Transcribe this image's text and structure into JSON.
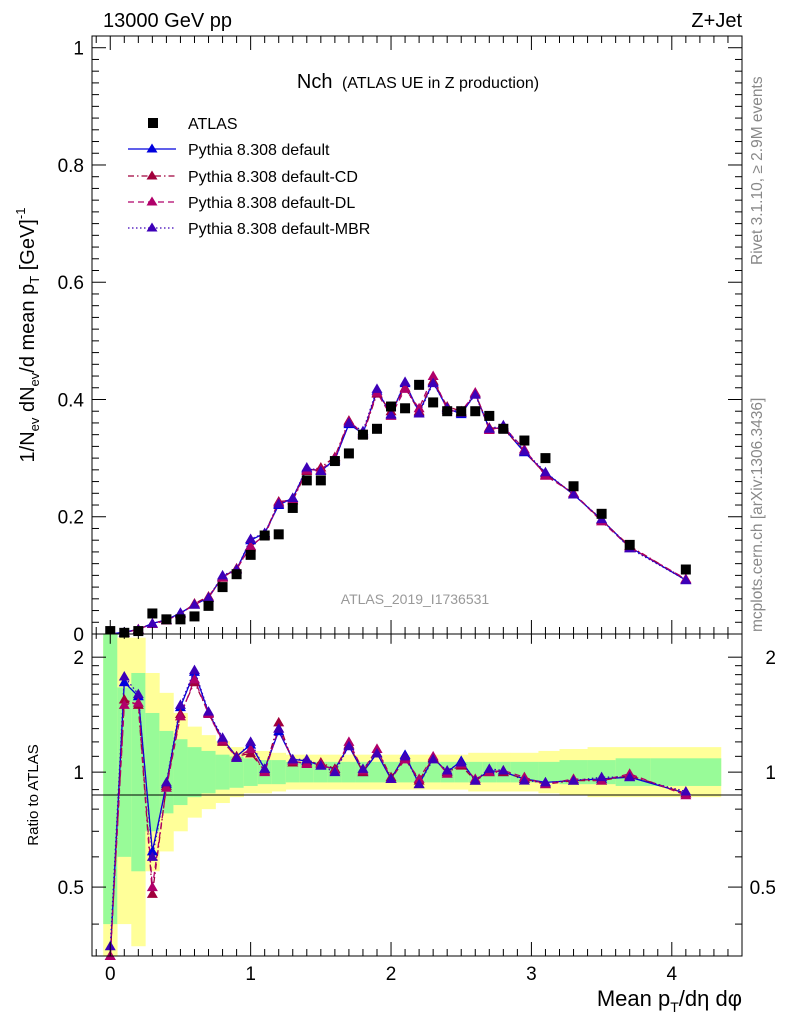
{
  "header": {
    "energy_label": "13000 GeV pp",
    "process_label": "Z+Jet"
  },
  "side_labels": {
    "rivet": "Rivet 3.1.10, ≥ 2.9M events",
    "mcplots": "mcplots.cern.ch [arXiv:1306.3436]"
  },
  "colors": {
    "data": "#000000",
    "default": "#0000dd",
    "default_cd": "#a1003c",
    "default_dl": "#b0006a",
    "default_mbr": "#3d00b8",
    "band_inner": "#98fb98",
    "band_outer": "#ffff99"
  },
  "chart_data": [
    {
      "type": "scatter",
      "title": "Nch",
      "subtitle": "(ATLAS UE in Z production)",
      "analysis_label": "ATLAS_2019_I1736531",
      "ylabel": "1/N_ev dN_ev/d mean p_T [GeV]^-1",
      "xlabel": "Mean p_T/dη dφ",
      "xlim": [
        -0.13,
        4.5
      ],
      "ylim": [
        0,
        1.02
      ],
      "x_ticks": [
        "0",
        "1",
        "2",
        "3",
        "4"
      ],
      "y_ticks": [
        "0",
        "0.2",
        "0.4",
        "0.6",
        "0.8",
        "1"
      ],
      "legend_position": "top-left",
      "x": [
        0.0,
        0.1,
        0.2,
        0.3,
        0.4,
        0.5,
        0.6,
        0.7,
        0.8,
        0.9,
        1.0,
        1.1,
        1.2,
        1.3,
        1.4,
        1.5,
        1.6,
        1.7,
        1.8,
        1.9,
        2.0,
        2.1,
        2.2,
        2.3,
        2.4,
        2.5,
        2.6,
        2.7,
        2.8,
        2.95,
        3.1,
        3.3,
        3.5,
        3.7,
        4.1
      ],
      "series": [
        {
          "name": "ATLAS",
          "key": "data",
          "style": "square",
          "values": [
            0.005,
            0.002,
            0.005,
            0.035,
            0.025,
            0.025,
            0.03,
            0.048,
            0.08,
            0.102,
            0.135,
            0.168,
            0.17,
            0.215,
            0.262,
            0.262,
            0.295,
            0.308,
            0.34,
            0.35,
            0.388,
            0.385,
            0.425,
            0.395,
            0.38,
            0.38,
            0.38,
            0.372,
            0.35,
            0.33,
            0.3,
            0.252,
            0.205,
            0.152,
            0.11
          ]
        },
        {
          "name": "Pythia 8.308 default",
          "key": "default",
          "style": "solid",
          "values": [
            0.0,
            0.003,
            0.008,
            0.018,
            0.024,
            0.036,
            0.05,
            0.062,
            0.098,
            0.11,
            0.16,
            0.172,
            0.22,
            0.232,
            0.282,
            0.278,
            0.298,
            0.358,
            0.342,
            0.415,
            0.375,
            0.428,
            0.378,
            0.43,
            0.385,
            0.375,
            0.41,
            0.35,
            0.352,
            0.31,
            0.275,
            0.238,
            0.195,
            0.148,
            0.092
          ]
        },
        {
          "name": "Pythia 8.308 default-CD",
          "key": "default_cd",
          "style": "dashdot",
          "values": [
            0.0,
            0.002,
            0.008,
            0.018,
            0.024,
            0.034,
            0.052,
            0.064,
            0.096,
            0.112,
            0.148,
            0.17,
            0.226,
            0.228,
            0.278,
            0.284,
            0.302,
            0.364,
            0.34,
            0.41,
            0.38,
            0.42,
            0.38,
            0.432,
            0.388,
            0.38,
            0.41,
            0.352,
            0.35,
            0.312,
            0.272,
            0.24,
            0.194,
            0.15,
            0.093
          ]
        },
        {
          "name": "Pythia 8.308 default-DL",
          "key": "default_dl",
          "style": "dashed",
          "values": [
            0.0,
            0.002,
            0.008,
            0.017,
            0.023,
            0.035,
            0.05,
            0.062,
            0.097,
            0.11,
            0.15,
            0.168,
            0.224,
            0.23,
            0.28,
            0.28,
            0.3,
            0.362,
            0.344,
            0.412,
            0.372,
            0.418,
            0.385,
            0.44,
            0.382,
            0.378,
            0.412,
            0.348,
            0.354,
            0.315,
            0.27,
            0.24,
            0.192,
            0.148,
            0.094
          ]
        },
        {
          "name": "Pythia 8.308 default-MBR",
          "key": "default_mbr",
          "style": "dotted",
          "values": [
            0.0,
            0.003,
            0.007,
            0.018,
            0.024,
            0.036,
            0.05,
            0.062,
            0.1,
            0.11,
            0.162,
            0.172,
            0.222,
            0.232,
            0.284,
            0.278,
            0.296,
            0.36,
            0.346,
            0.418,
            0.374,
            0.43,
            0.376,
            0.428,
            0.386,
            0.377,
            0.408,
            0.35,
            0.356,
            0.312,
            0.276,
            0.238,
            0.196,
            0.146,
            0.092
          ]
        }
      ]
    },
    {
      "type": "line",
      "ylabel": "Ratio to ATLAS",
      "xlim": [
        -0.13,
        4.5
      ],
      "ylim": [
        0.33,
        2.3
      ],
      "x_ticks": [
        "0",
        "1",
        "2",
        "3",
        "4"
      ],
      "y_ticks": [
        "0.5",
        "1",
        "2"
      ],
      "reference_line": 1,
      "band_edges": [
        -0.05,
        0.05,
        0.15,
        0.25,
        0.35,
        0.45,
        0.55,
        0.65,
        0.75,
        0.85,
        0.95,
        1.05,
        1.15,
        1.25,
        1.35,
        1.45,
        1.55,
        1.65,
        1.75,
        1.85,
        1.95,
        2.05,
        2.15,
        2.25,
        2.35,
        2.45,
        2.55,
        2.65,
        2.75,
        2.85,
        3.05,
        3.2,
        3.4,
        3.6,
        3.85,
        4.35
      ],
      "band_inner": [
        0.4,
        0.6,
        0.55,
        0.7,
        0.78,
        0.82,
        0.86,
        0.88,
        0.9,
        0.91,
        0.92,
        0.93,
        0.93,
        0.94,
        0.94,
        0.94,
        0.94,
        0.94,
        0.94,
        0.94,
        0.94,
        0.94,
        0.94,
        0.94,
        0.94,
        0.94,
        0.94,
        0.94,
        0.94,
        0.94,
        0.94,
        0.93,
        0.93,
        0.92,
        0.92
      ],
      "band_outer": [
        0.25,
        0.4,
        0.35,
        0.55,
        0.62,
        0.7,
        0.76,
        0.8,
        0.83,
        0.86,
        0.88,
        0.88,
        0.89,
        0.9,
        0.9,
        0.9,
        0.9,
        0.9,
        0.9,
        0.9,
        0.9,
        0.9,
        0.9,
        0.9,
        0.9,
        0.9,
        0.89,
        0.89,
        0.89,
        0.89,
        0.88,
        0.87,
        0.86,
        0.86,
        0.86
      ],
      "x": [
        0.0,
        0.1,
        0.2,
        0.3,
        0.4,
        0.5,
        0.6,
        0.7,
        0.8,
        0.9,
        1.0,
        1.1,
        1.2,
        1.3,
        1.4,
        1.5,
        1.6,
        1.7,
        1.8,
        1.9,
        2.0,
        2.1,
        2.2,
        2.3,
        2.4,
        2.5,
        2.6,
        2.7,
        2.8,
        2.95,
        3.1,
        3.3,
        3.5,
        3.7,
        4.1
      ],
      "series": [
        {
          "name": "Pythia 8.308 default",
          "key": "default",
          "style": "solid",
          "values": [
            0.28,
            1.72,
            1.58,
            0.62,
            0.93,
            1.48,
            1.83,
            1.43,
            1.22,
            1.1,
            1.18,
            1.02,
            1.28,
            1.08,
            1.07,
            1.04,
            1.02,
            1.17,
            1.0,
            1.12,
            0.96,
            1.11,
            0.93,
            1.09,
            1.0,
            1.07,
            0.95,
            1.01,
            1.0,
            0.96,
            0.94,
            0.95,
            0.96,
            0.97,
            0.88
          ]
        },
        {
          "name": "Pythia 8.308 default-CD",
          "key": "default_cd",
          "style": "dashdot",
          "values": [
            0.3,
            1.55,
            1.5,
            0.48,
            0.92,
            1.42,
            1.72,
            1.43,
            1.2,
            1.1,
            1.12,
            1.01,
            1.35,
            1.06,
            1.06,
            1.06,
            1.02,
            1.18,
            1.0,
            1.15,
            0.97,
            1.09,
            0.95,
            1.09,
            1.0,
            1.04,
            0.95,
            1.0,
            1.0,
            0.96,
            0.93,
            0.95,
            0.95,
            0.98,
            0.88
          ]
        },
        {
          "name": "Pythia 8.308 default-DL",
          "key": "default_dl",
          "style": "dashed",
          "values": [
            0.33,
            1.5,
            1.52,
            0.5,
            0.91,
            1.4,
            1.75,
            1.42,
            1.21,
            1.09,
            1.15,
            1.0,
            1.3,
            1.07,
            1.05,
            1.05,
            1.01,
            1.2,
            1.01,
            1.15,
            0.96,
            1.08,
            0.96,
            1.1,
            0.99,
            1.05,
            0.96,
            1.0,
            1.01,
            0.97,
            0.93,
            0.96,
            0.95,
            0.99,
            0.87
          ]
        },
        {
          "name": "Pythia 8.308 default-MBR",
          "key": "default_mbr",
          "style": "dotted",
          "values": [
            0.35,
            1.78,
            1.6,
            0.6,
            0.94,
            1.5,
            1.85,
            1.44,
            1.23,
            1.09,
            1.2,
            1.02,
            1.3,
            1.08,
            1.08,
            1.04,
            1.0,
            1.17,
            1.02,
            1.12,
            0.96,
            1.1,
            0.93,
            1.08,
            1.01,
            1.06,
            0.95,
            1.02,
            1.01,
            0.95,
            0.94,
            0.95,
            0.97,
            0.97,
            0.89
          ]
        }
      ]
    }
  ]
}
